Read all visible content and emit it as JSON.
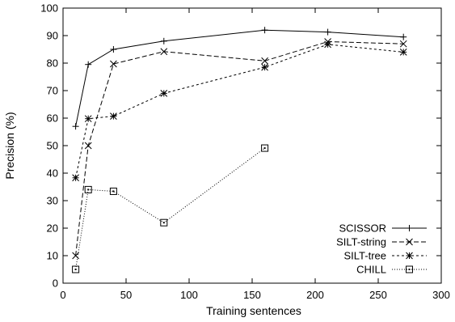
{
  "chart_data": {
    "type": "line",
    "xlabel": "Training sentences",
    "ylabel": "Precision (%)",
    "xlim": [
      0,
      300
    ],
    "ylim": [
      0,
      100
    ],
    "xticks": [
      0,
      50,
      100,
      150,
      200,
      250,
      300
    ],
    "yticks": [
      0,
      10,
      20,
      30,
      40,
      50,
      60,
      70,
      80,
      90,
      100
    ],
    "grid": false,
    "legend_position": "bottom-right",
    "series": [
      {
        "name": "SCISSOR",
        "marker": "plus",
        "dash": "solid",
        "x": [
          10,
          20,
          40,
          80,
          160,
          210,
          270
        ],
        "y": [
          57,
          79.5,
          85,
          88,
          92,
          91.3,
          89.5
        ]
      },
      {
        "name": "SILT-string",
        "marker": "x",
        "dash": "dashed",
        "x": [
          10,
          20,
          40,
          80,
          160,
          210,
          270
        ],
        "y": [
          10,
          50,
          79.7,
          84.2,
          80.8,
          87.8,
          87
        ]
      },
      {
        "name": "SILT-tree",
        "marker": "star",
        "dash": "fine-dashed",
        "x": [
          10,
          20,
          40,
          80,
          160,
          210,
          270
        ],
        "y": [
          38.3,
          59.8,
          60.7,
          69,
          78.5,
          86.8,
          84
        ]
      },
      {
        "name": "CHILL",
        "marker": "dotted-square",
        "dash": "dotted",
        "x": [
          10,
          20,
          40,
          80,
          160
        ],
        "y": [
          5,
          34,
          33.4,
          22,
          49.1
        ]
      }
    ]
  }
}
